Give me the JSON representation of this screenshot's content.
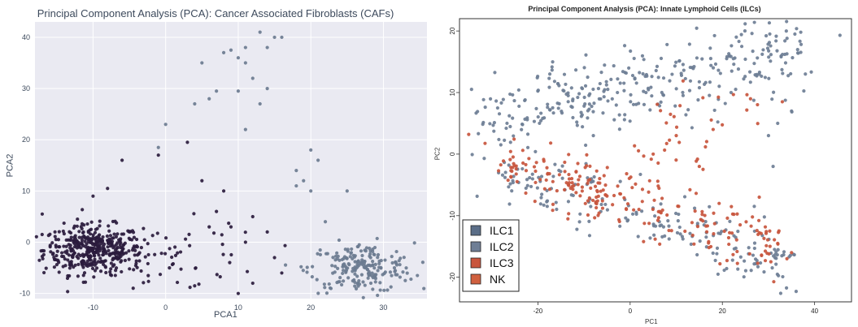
{
  "chart_data": [
    {
      "type": "scatter",
      "title": "Principal Component Analysis (PCA): Cancer Associated Fibroblasts (CAFs)",
      "xlabel": "PCA1",
      "ylabel": "PCA2",
      "xlim": [
        -18,
        36
      ],
      "ylim": [
        -11,
        43
      ],
      "xticks": [
        -10,
        0,
        10,
        20,
        30
      ],
      "yticks": [
        -10,
        0,
        10,
        20,
        30,
        40
      ],
      "grid": true,
      "background": "#eaeaf2",
      "series": [
        {
          "color": "#2a1b3d",
          "clusters": [
            {
              "cx": -10,
              "cy": -1.5,
              "sx": 3.4,
              "sy": 2.4,
              "n": 420
            },
            {
              "cx": 2,
              "cy": -3,
              "sx": 6,
              "sy": 3.5,
              "n": 55
            }
          ],
          "points": [
            [
              -17,
              5.5
            ],
            [
              -6,
              16
            ],
            [
              3,
              19.5
            ],
            [
              -1,
              17
            ],
            [
              -10,
              9
            ],
            [
              -8,
              10.5
            ],
            [
              5,
              12
            ],
            [
              7,
              6
            ],
            [
              12,
              5
            ],
            [
              14,
              2
            ],
            [
              10,
              -10
            ],
            [
              12,
              -8
            ],
            [
              16,
              -6
            ],
            [
              15,
              -3
            ],
            [
              8,
              10
            ],
            [
              9,
              3
            ],
            [
              11,
              0
            ],
            [
              4,
              -8.5
            ],
            [
              6,
              3
            ]
          ]
        },
        {
          "color": "#6b7b90",
          "clusters": [
            {
              "cx": 27,
              "cy": -5,
              "sx": 3.6,
              "sy": 2.4,
              "n": 210
            }
          ],
          "points": [
            [
              10,
              36
            ],
            [
              11,
              35
            ],
            [
              9,
              37.5
            ],
            [
              13,
              41
            ],
            [
              15,
              40
            ],
            [
              14,
              38
            ],
            [
              16,
              40
            ],
            [
              8,
              37
            ],
            [
              11,
              38
            ],
            [
              12,
              32
            ],
            [
              14,
              30
            ],
            [
              13,
              27
            ],
            [
              10,
              29.5
            ],
            [
              7,
              29.5
            ],
            [
              6,
              28
            ],
            [
              5,
              35
            ],
            [
              4,
              27
            ],
            [
              0,
              23
            ],
            [
              -1,
              18.5
            ],
            [
              20,
              18
            ],
            [
              21,
              16
            ],
            [
              19,
              12
            ],
            [
              18,
              14
            ],
            [
              20,
              10
            ],
            [
              18,
              11
            ],
            [
              11,
              22
            ],
            [
              25,
              10
            ],
            [
              22,
              4
            ]
          ]
        }
      ]
    },
    {
      "type": "scatter",
      "title": "Principal Component Analysis (PCA): Innate Lymphoid Cells (ILCs)",
      "xlabel": "PC1",
      "ylabel": "PC2",
      "xlim": [
        -37,
        48
      ],
      "ylim": [
        -24,
        22
      ],
      "xticks": [
        -20,
        0,
        20,
        40
      ],
      "yticks": [
        -20,
        -10,
        0,
        10,
        20
      ],
      "grid": false,
      "legend": {
        "placement": "bottom-left",
        "entries": [
          {
            "label": "ILC1",
            "color": "#5b6e88"
          },
          {
            "label": "ILC2",
            "color": "#6e7e95"
          },
          {
            "label": "ILC3",
            "color": "#c8553d"
          },
          {
            "label": "NK",
            "color": "#d0603f"
          }
        ]
      },
      "series": [
        {
          "color": "#6e7e95",
          "bands": [
            {
              "x0": -33,
              "y0": 5,
              "x1": 37,
              "y1": 17,
              "spread": 3.2,
              "n": 330
            },
            {
              "x0": -28,
              "y0": -3,
              "x1": 35,
              "y1": -18,
              "spread": 2.2,
              "n": 190
            }
          ],
          "points": [
            [
              45.5,
              19.3
            ],
            [
              37,
              19.8
            ],
            [
              36,
              -22.3
            ],
            [
              31,
              -2
            ],
            [
              30,
              3
            ],
            [
              32,
              5
            ],
            [
              35,
              7
            ],
            [
              38,
              13
            ]
          ]
        },
        {
          "color": "#c8553d",
          "bands": [
            {
              "x0": -28,
              "y0": -2,
              "x1": 32,
              "y1": -15,
              "spread": 2.4,
              "n": 230
            },
            {
              "x0": 0,
              "y0": 0,
              "x1": 30,
              "y1": 7,
              "spread": 3.5,
              "n": 35
            }
          ],
          "points": [
            [
              -35,
              3.2
            ],
            [
              33,
              8.5
            ],
            [
              34,
              -17
            ],
            [
              35,
              -16
            ],
            [
              32,
              -14.5
            ],
            [
              28,
              -7
            ],
            [
              18,
              4
            ],
            [
              10,
              3
            ],
            [
              5,
              0
            ],
            [
              15,
              -2
            ]
          ]
        }
      ]
    }
  ]
}
